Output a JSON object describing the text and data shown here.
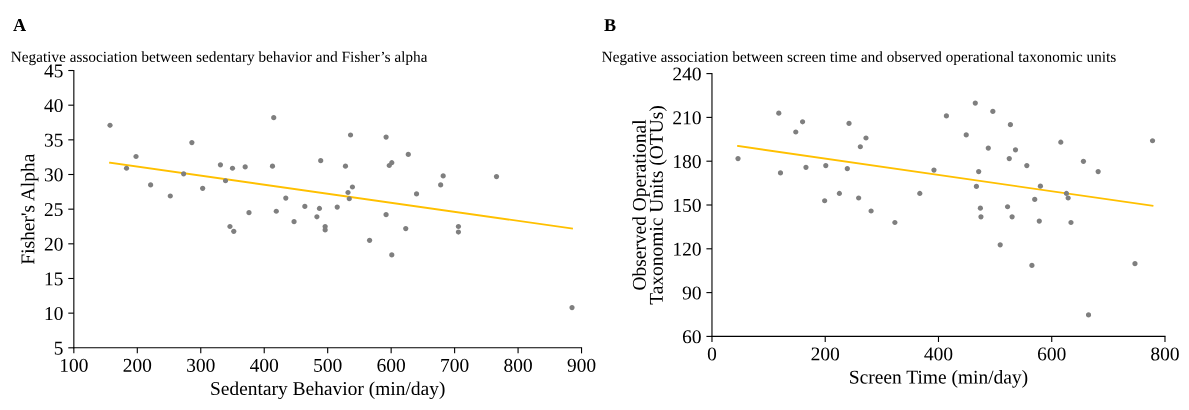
{
  "chart_data": [
    {
      "type": "scatter",
      "title": "A",
      "subtitle": "Negative association between sedentary behavior and Fisher’s alpha",
      "xlabel": "Sedentary Behavior (min/day)",
      "ylabel": "Fisher's Alpha",
      "xlim": [
        100,
        900
      ],
      "xticks": [
        100,
        200,
        300,
        400,
        500,
        600,
        700,
        800,
        900
      ],
      "ylim": [
        5,
        45
      ],
      "yticks": [
        5,
        10,
        15,
        20,
        25,
        30,
        35,
        40,
        45
      ],
      "grid": false,
      "legend": false,
      "marker": "circle",
      "series": [
        {
          "color": "#7f7f7f",
          "x": [
            157,
            183,
            198,
            221,
            252,
            273,
            286,
            303,
            331,
            339,
            346,
            350,
            352,
            370,
            376,
            413,
            415,
            419,
            434,
            447,
            464,
            483,
            487,
            489,
            496,
            496,
            515,
            528,
            532,
            534,
            536,
            539,
            566,
            592,
            592,
            597,
            601,
            601,
            623,
            627,
            640,
            678,
            682,
            706,
            706,
            766,
            885
          ],
          "values": [
            37.1,
            30.9,
            32.6,
            28.5,
            26.9,
            30.1,
            34.6,
            28.0,
            31.4,
            29.1,
            22.5,
            30.9,
            21.8,
            31.1,
            24.5,
            31.2,
            38.2,
            24.7,
            26.6,
            23.2,
            25.4,
            23.9,
            25.1,
            32.0,
            22.5,
            22.0,
            25.3,
            31.2,
            27.4,
            26.5,
            35.7,
            28.2,
            20.5,
            35.4,
            24.2,
            31.3,
            31.7,
            18.4,
            22.2,
            32.9,
            27.2,
            28.5,
            29.8,
            22.5,
            21.7,
            29.7,
            10.8
          ]
        },
        {
          "type": "line",
          "marker": "none",
          "color": "#ffc000",
          "x": [
            157,
            885
          ],
          "values": [
            31.7,
            22.2
          ]
        }
      ]
    },
    {
      "type": "scatter",
      "title": "B",
      "subtitle": "Negative association between screen time and observed operational taxonomic units",
      "xlabel": "Screen Time (min/day)",
      "ylabel": "Observed Operational\nTaxonomic Units (OTUs)",
      "xlim": [
        0,
        800
      ],
      "xticks": [
        0,
        200,
        400,
        600,
        800
      ],
      "ylim": [
        60,
        240
      ],
      "yticks": [
        60,
        90,
        120,
        150,
        180,
        210,
        240
      ],
      "grid": false,
      "legend": false,
      "marker": "circle",
      "series": [
        {
          "color": "#7f7f7f",
          "x": [
            46,
            118,
            121,
            148,
            160,
            166,
            199,
            201,
            225,
            239,
            242,
            259,
            262,
            272,
            281,
            323,
            367,
            392,
            414,
            449,
            465,
            467,
            471,
            474,
            475,
            488,
            496,
            509,
            522,
            525,
            527,
            530,
            536,
            556,
            565,
            570,
            578,
            580,
            616,
            626,
            629,
            634,
            656,
            665,
            682,
            747,
            778
          ],
          "values": [
            181.8,
            212.9,
            172,
            200,
            207,
            175.8,
            152.9,
            177,
            157.9,
            174.9,
            205.9,
            154.8,
            189.9,
            195.9,
            145.9,
            138,
            157.9,
            173.9,
            211,
            198,
            219.8,
            162.7,
            172.9,
            147.8,
            141.9,
            189,
            214.1,
            122.7,
            148.8,
            181.8,
            205,
            141.9,
            187.8,
            177,
            108.6,
            153.8,
            139,
            162.9,
            193,
            157.9,
            154.8,
            138,
            179.9,
            74.7,
            172.9,
            109.8,
            194
          ]
        },
        {
          "type": "line",
          "marker": "none",
          "color": "#ffc000",
          "x": [
            46,
            778
          ],
          "values": [
            190.4,
            149.5
          ]
        }
      ]
    }
  ]
}
